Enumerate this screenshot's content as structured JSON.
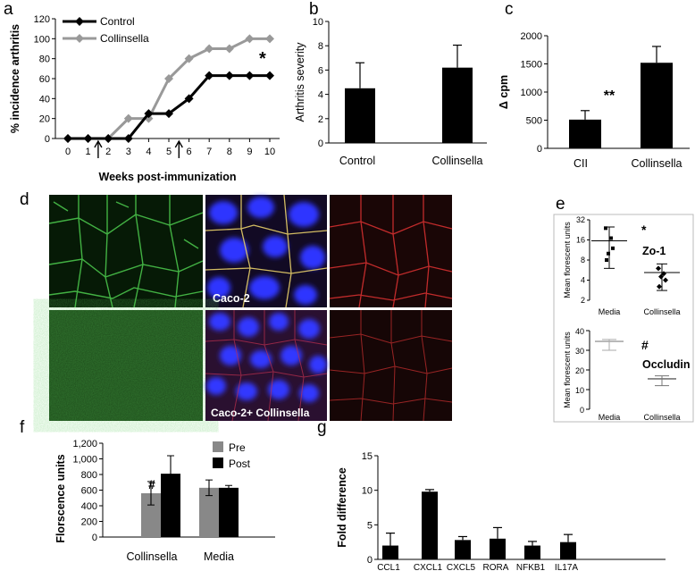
{
  "panels": {
    "a": "a",
    "b": "b",
    "c": "c",
    "d": "d",
    "e": "e",
    "f": "f",
    "g": "g"
  },
  "chart_data": [
    {
      "id": "a",
      "type": "line",
      "x": [
        0,
        1,
        2,
        3,
        4,
        5,
        6,
        7,
        8,
        9,
        10
      ],
      "series": [
        {
          "name": "Control",
          "color": "#000000",
          "values": [
            0,
            0,
            0,
            0,
            25,
            25,
            40,
            63,
            63,
            63,
            63
          ]
        },
        {
          "name": "Collinsella",
          "color": "#999999",
          "values": [
            0,
            0,
            0,
            20,
            20,
            60,
            80,
            90,
            90,
            100,
            100
          ]
        }
      ],
      "ylabel": "% incidence arthritis",
      "xlabel": "Weeks post-immunization",
      "ylim": [
        0,
        120
      ],
      "yticks": [
        0,
        20,
        40,
        60,
        80,
        100,
        120
      ],
      "arrows_at_weeks": [
        1.5,
        5.5
      ],
      "annotation": "*",
      "legend_position": "top-left"
    },
    {
      "id": "b",
      "type": "bar",
      "categories": [
        "Control",
        "Collinsella"
      ],
      "values": [
        4.5,
        6.2
      ],
      "errors": [
        2.1,
        1.85
      ],
      "ylabel": "Arthritis severity",
      "ylim": [
        0,
        10
      ],
      "yticks": [
        0,
        2,
        4,
        6,
        8,
        10
      ]
    },
    {
      "id": "c",
      "type": "bar",
      "categories": [
        "CII",
        "Collinsella"
      ],
      "values": [
        510,
        1520
      ],
      "errors": [
        160,
        290
      ],
      "ylabel": "Δ cpm",
      "ylim": [
        0,
        2000
      ],
      "yticks": [
        0,
        500,
        1000,
        1500,
        2000
      ],
      "annotation": "**"
    },
    {
      "id": "e1",
      "type": "scatter",
      "categories": [
        "Media",
        "Collinsella"
      ],
      "points": [
        [
          24,
          17,
          10,
          12,
          8
        ],
        [
          6,
          5,
          4.5,
          4,
          3.2
        ]
      ],
      "means": [
        15.5,
        5.2
      ],
      "sd_low": [
        6,
        2.8
      ],
      "sd_high": [
        25,
        7
      ],
      "ylabel": "Mean florescent units",
      "yscale": "log2",
      "yticks": [
        2,
        4,
        8,
        16,
        32
      ],
      "annotation": "*",
      "label": "Zo-1"
    },
    {
      "id": "e2",
      "type": "scatter",
      "categories": [
        "Media",
        "Collinsella"
      ],
      "means": [
        34.5,
        15.5
      ],
      "sd_low": [
        30,
        12
      ],
      "sd_high": [
        35.5,
        17
      ],
      "colors": [
        "#aaaaaa",
        "#777777"
      ],
      "ylabel": "Mean florescent units",
      "ylim": [
        0,
        40
      ],
      "yticks": [
        0,
        10,
        20,
        30,
        40
      ],
      "annotation": "#",
      "label": "Occludin"
    },
    {
      "id": "f",
      "type": "bar",
      "categories": [
        "Collinsella",
        "Media"
      ],
      "series": [
        {
          "name": "Pre",
          "color": "#888888",
          "values": [
            560,
            630
          ],
          "errors": [
            150,
            100
          ]
        },
        {
          "name": "Post",
          "color": "#000000",
          "values": [
            810,
            630
          ],
          "errors": [
            230,
            30
          ]
        }
      ],
      "ylabel": "Florscence units",
      "ylim": [
        0,
        1200
      ],
      "yticks": [
        0,
        200,
        400,
        600,
        800,
        1000,
        1200
      ],
      "yticklabels": [
        "0",
        "200",
        "400",
        "600",
        "800",
        "1,000",
        "1,200"
      ],
      "annotation": "#",
      "legend_position": "top-right"
    },
    {
      "id": "g",
      "type": "bar",
      "categories": [
        "CCL1",
        "CXCL1",
        "CXCL5",
        "RORA",
        "NFKB1",
        "IL17A"
      ],
      "values": [
        2.0,
        9.8,
        2.8,
        3.0,
        2.0,
        2.5
      ],
      "errors": [
        1.8,
        0.3,
        0.5,
        1.6,
        0.6,
        1.1
      ],
      "ylabel": "Fold difference",
      "ylim": [
        0,
        15
      ],
      "yticks": [
        0,
        5,
        10,
        15
      ]
    }
  ],
  "micrographs": {
    "top_middle_label": "Caco-2",
    "bottom_middle_label": "Caco-2+ Collinsella"
  }
}
